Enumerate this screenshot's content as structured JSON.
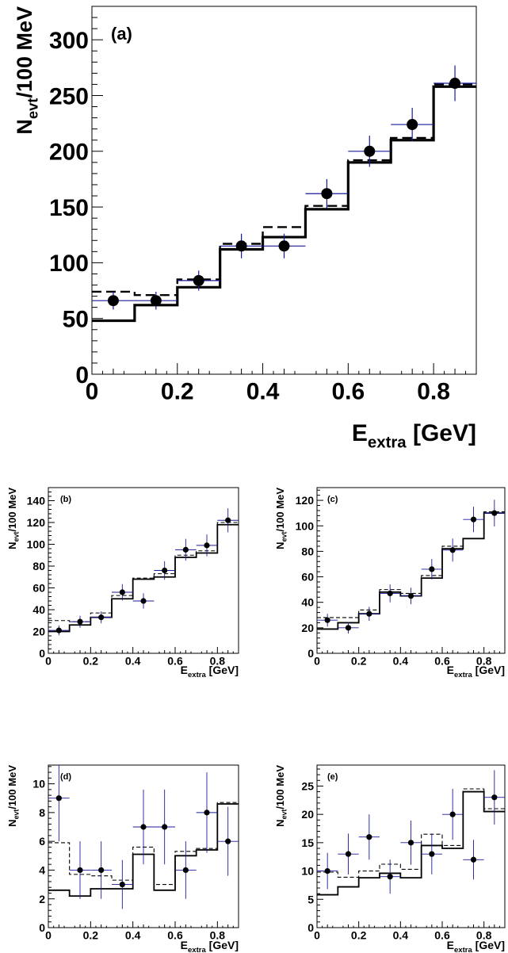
{
  "chart_data": [
    {
      "id": "a",
      "type": "histogram",
      "panel_label": "(a)",
      "xlabel_main": "E",
      "xlabel_sub": "extra",
      "xlabel_unit": " [GeV]",
      "ylabel_main": "N",
      "ylabel_sub": "evt",
      "ylabel_unit": "/100 MeV",
      "xlim": [
        0,
        0.9
      ],
      "ylim": [
        0,
        330
      ],
      "xticks": [
        0,
        0.2,
        0.4,
        0.6,
        0.8
      ],
      "xtick_labels": [
        "0",
        "0.2",
        "0.4",
        "0.6",
        "0.8"
      ],
      "yticks": [
        0,
        50,
        100,
        150,
        200,
        250,
        300
      ],
      "ytick_labels": [
        "0",
        "50",
        "100",
        "150",
        "200",
        "250",
        "300"
      ],
      "bin_edges": [
        0,
        0.1,
        0.2,
        0.3,
        0.4,
        0.5,
        0.6,
        0.7,
        0.8,
        0.9
      ],
      "series": [
        {
          "style": "solid",
          "values": [
            48,
            62,
            78,
            112,
            123,
            148,
            190,
            210,
            258
          ]
        },
        {
          "style": "dashed",
          "values": [
            74,
            71,
            85,
            117,
            132,
            151,
            192,
            212,
            260
          ]
        },
        {
          "style": "points",
          "x": [
            0.05,
            0.15,
            0.25,
            0.35,
            0.45,
            0.55,
            0.65,
            0.75,
            0.85
          ],
          "values": [
            66,
            66,
            84,
            115,
            115,
            162,
            200,
            224,
            261
          ],
          "errors": [
            8,
            8,
            9,
            11,
            11,
            13,
            14,
            15,
            16
          ]
        }
      ]
    },
    {
      "id": "b",
      "type": "histogram",
      "panel_label": "(b)",
      "xlabel_main": "E",
      "xlabel_sub": "extra",
      "xlabel_unit": " [GeV]",
      "ylabel_main": "N",
      "ylabel_sub": "evt",
      "ylabel_unit": "/100 MeV",
      "xlim": [
        0,
        0.9
      ],
      "ylim": [
        0,
        152
      ],
      "xticks": [
        0,
        0.2,
        0.4,
        0.6,
        0.8
      ],
      "xtick_labels": [
        "0",
        "0.2",
        "0.4",
        "0.6",
        "0.8"
      ],
      "yticks": [
        0,
        20,
        40,
        60,
        80,
        100,
        120,
        140
      ],
      "ytick_labels": [
        "0",
        "20",
        "40",
        "60",
        "80",
        "100",
        "120",
        "140"
      ],
      "bin_edges": [
        0,
        0.1,
        0.2,
        0.3,
        0.4,
        0.5,
        0.6,
        0.7,
        0.8,
        0.9
      ],
      "series": [
        {
          "style": "solid",
          "values": [
            20,
            26,
            33,
            50,
            68,
            70,
            88,
            92,
            118
          ]
        },
        {
          "style": "dashed",
          "values": [
            30,
            29,
            37,
            53,
            69,
            73,
            90,
            94,
            120
          ]
        },
        {
          "style": "points",
          "x": [
            0.05,
            0.15,
            0.25,
            0.35,
            0.45,
            0.55,
            0.65,
            0.75,
            0.85
          ],
          "values": [
            21,
            29,
            33,
            56,
            48,
            76,
            95,
            99,
            122
          ],
          "errors": [
            4.5,
            5.5,
            5.5,
            7.5,
            7,
            8.5,
            10,
            10,
            11
          ]
        }
      ]
    },
    {
      "id": "c",
      "type": "histogram",
      "panel_label": "(c)",
      "xlabel_main": "E",
      "xlabel_sub": "extra",
      "xlabel_unit": " [GeV]",
      "ylabel_main": "N",
      "ylabel_sub": "evt",
      "ylabel_unit": "/100 MeV",
      "xlim": [
        0,
        0.9
      ],
      "ylim": [
        0,
        130
      ],
      "xticks": [
        0,
        0.2,
        0.4,
        0.6,
        0.8
      ],
      "xtick_labels": [
        "0",
        "0.2",
        "0.4",
        "0.6",
        "0.8"
      ],
      "yticks": [
        0,
        20,
        40,
        60,
        80,
        100,
        120
      ],
      "ytick_labels": [
        "0",
        "20",
        "40",
        "60",
        "80",
        "100",
        "120"
      ],
      "bin_edges": [
        0,
        0.1,
        0.2,
        0.3,
        0.4,
        0.5,
        0.6,
        0.7,
        0.8,
        0.9
      ],
      "series": [
        {
          "style": "solid",
          "values": [
            19,
            24,
            31,
            48,
            45,
            59,
            82,
            90,
            110
          ]
        },
        {
          "style": "dashed",
          "values": [
            28,
            28,
            34,
            50,
            47,
            61,
            84,
            90,
            111
          ]
        },
        {
          "style": "points",
          "x": [
            0.05,
            0.15,
            0.25,
            0.35,
            0.45,
            0.55,
            0.65,
            0.75,
            0.85
          ],
          "values": [
            26,
            20,
            31,
            47,
            45,
            66,
            81,
            105,
            110
          ],
          "errors": [
            5,
            4.5,
            5.5,
            7,
            6.5,
            8,
            9,
            10,
            10.5
          ]
        }
      ]
    },
    {
      "id": "d",
      "type": "histogram",
      "panel_label": "(d)",
      "xlabel_main": "E",
      "xlabel_sub": "extra",
      "xlabel_unit": " [GeV]",
      "ylabel_main": "N",
      "ylabel_sub": "evt",
      "ylabel_unit": "/100 MeV",
      "xlim": [
        0,
        0.9
      ],
      "ylim": [
        0,
        11.3
      ],
      "xticks": [
        0,
        0.2,
        0.4,
        0.6,
        0.8
      ],
      "xtick_labels": [
        "0",
        "0.2",
        "0.4",
        "0.6",
        "0.8"
      ],
      "yticks": [
        0,
        2,
        4,
        6,
        8,
        10
      ],
      "ytick_labels": [
        "0",
        "2",
        "4",
        "6",
        "8",
        "10"
      ],
      "bin_edges": [
        0,
        0.1,
        0.2,
        0.3,
        0.4,
        0.5,
        0.6,
        0.7,
        0.8,
        0.9
      ],
      "series": [
        {
          "style": "solid",
          "values": [
            2.6,
            2.2,
            2.7,
            2.7,
            5.1,
            2.6,
            5.0,
            5.4,
            8.6
          ]
        },
        {
          "style": "dashed",
          "values": [
            5.9,
            3.7,
            3.6,
            3.3,
            5.6,
            3.0,
            5.3,
            5.5,
            8.7
          ]
        },
        {
          "style": "points",
          "x": [
            0.05,
            0.15,
            0.25,
            0.35,
            0.45,
            0.55,
            0.65,
            0.75,
            0.85
          ],
          "values": [
            9,
            4,
            4,
            3,
            7,
            7,
            4,
            8,
            6
          ],
          "errors": [
            3,
            2,
            2,
            1.7,
            2.6,
            2.6,
            2,
            2.8,
            2.4
          ]
        }
      ]
    },
    {
      "id": "e",
      "type": "histogram",
      "panel_label": "(e)",
      "xlabel_main": "E",
      "xlabel_sub": "extra",
      "xlabel_unit": " [GeV]",
      "ylabel_main": "N",
      "ylabel_sub": "evt",
      "ylabel_unit": "/100 MeV",
      "xlim": [
        0,
        0.9
      ],
      "ylim": [
        0,
        28.7
      ],
      "xticks": [
        0,
        0.2,
        0.4,
        0.6,
        0.8
      ],
      "xtick_labels": [
        "0",
        "0.2",
        "0.4",
        "0.6",
        "0.8"
      ],
      "yticks": [
        0,
        5,
        10,
        15,
        20,
        25
      ],
      "ytick_labels": [
        "0",
        "5",
        "10",
        "15",
        "20",
        "25"
      ],
      "bin_edges": [
        0,
        0.1,
        0.2,
        0.3,
        0.4,
        0.5,
        0.6,
        0.7,
        0.8,
        0.9
      ],
      "series": [
        {
          "style": "solid",
          "values": [
            5.8,
            7.2,
            8.8,
            9.6,
            8.8,
            14.5,
            14.0,
            24.0,
            20.5
          ]
        },
        {
          "style": "dashed",
          "values": [
            9.8,
            8.9,
            10.0,
            11.2,
            10.3,
            16.5,
            14.5,
            24.5,
            21.0
          ]
        },
        {
          "style": "points",
          "x": [
            0.05,
            0.15,
            0.25,
            0.35,
            0.45,
            0.55,
            0.65,
            0.75,
            0.85
          ],
          "values": [
            10,
            13,
            16,
            9,
            15,
            13,
            20,
            12,
            23
          ],
          "errors": [
            3.2,
            3.6,
            4,
            3,
            3.9,
            3.6,
            4.5,
            3.5,
            4.8
          ]
        }
      ]
    }
  ]
}
